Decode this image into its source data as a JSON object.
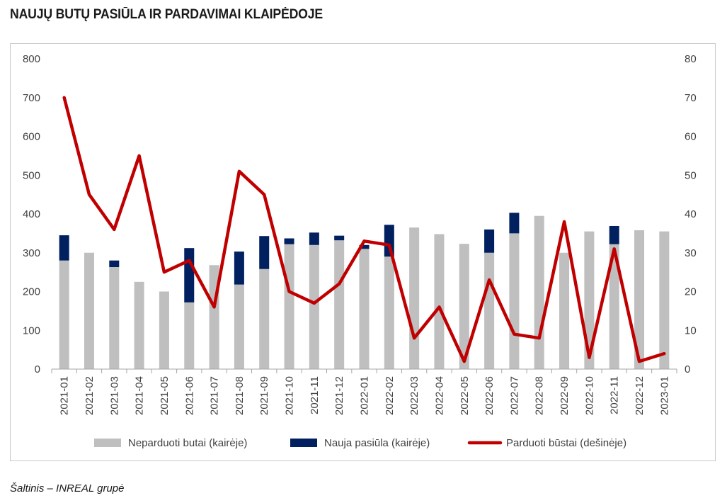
{
  "title": "NAUJŲ BUTŲ PASIŪLA IR PARDAVIMAI KLAIPĖDOJE",
  "source": "Šaltinis – INREAL grupė",
  "chart_data": {
    "type": "bar",
    "stacked": true,
    "categories": [
      "2021-01",
      "2021-02",
      "2021-03",
      "2021-04",
      "2021-05",
      "2021-06",
      "2021-07",
      "2021-08",
      "2021-09",
      "2021-10",
      "2021-11",
      "2021-12",
      "2022-01",
      "2022-02",
      "2022-03",
      "2022-04",
      "2022-05",
      "2022-06",
      "2022-07",
      "2022-08",
      "2022-09",
      "2022-10",
      "2022-11",
      "2022-12",
      "2023-01"
    ],
    "y_left": {
      "min": 0,
      "max": 800,
      "step": 100,
      "ticks": [
        "0",
        "100",
        "200",
        "300",
        "400",
        "500",
        "600",
        "700",
        "800"
      ]
    },
    "y_right": {
      "min": 0,
      "max": 80,
      "step": 10,
      "ticks": [
        "0",
        "10",
        "20",
        "30",
        "40",
        "50",
        "60",
        "70",
        "80"
      ]
    },
    "grid": false,
    "legend_position": "bottom",
    "series": [
      {
        "name": "Neparduoti butai (kairėje)",
        "type": "bar",
        "axis": "left",
        "color": "#bfbfbf",
        "values": [
          280,
          300,
          263,
          225,
          200,
          172,
          268,
          218,
          258,
          322,
          320,
          332,
          310,
          290,
          365,
          348,
          323,
          300,
          350,
          395,
          300,
          355,
          322,
          358,
          355
        ]
      },
      {
        "name": "Nauja pasiūla (kairėje)",
        "type": "bar",
        "axis": "left",
        "color": "#002060",
        "values": [
          65,
          0,
          17,
          0,
          0,
          140,
          0,
          85,
          85,
          15,
          32,
          12,
          10,
          82,
          0,
          0,
          0,
          60,
          53,
          0,
          0,
          0,
          47,
          0,
          0
        ]
      },
      {
        "name": "Parduoti būstai (dešinėje)",
        "type": "line",
        "axis": "right",
        "color": "#c00000",
        "values": [
          70,
          45,
          36,
          55,
          25,
          28,
          16,
          51,
          45,
          20,
          17,
          22,
          33,
          32,
          8,
          16,
          2,
          23,
          9,
          8,
          38,
          3,
          31,
          2,
          4
        ]
      }
    ]
  }
}
